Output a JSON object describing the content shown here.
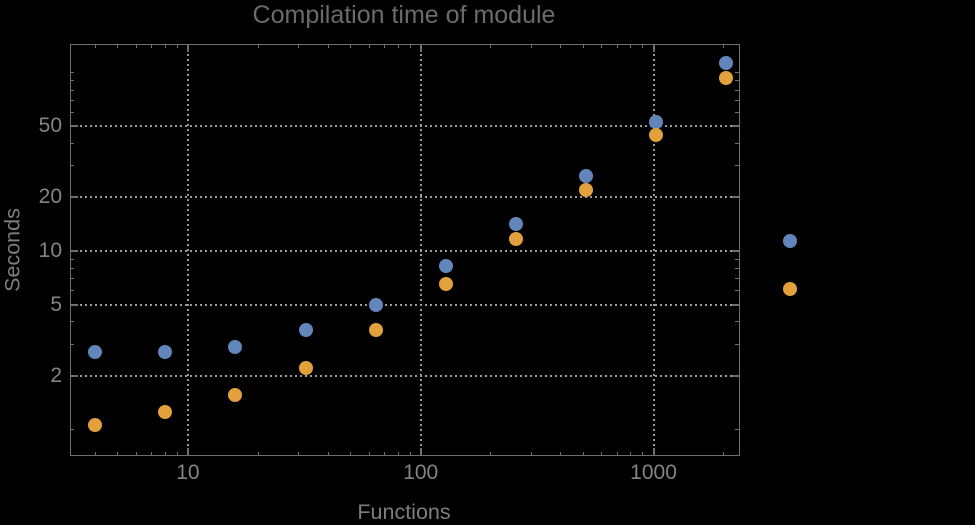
{
  "title": "Compilation time of module",
  "chart_data": {
    "type": "scatter",
    "title": "Compilation time of module",
    "xlabel": "Functions",
    "ylabel": "Seconds",
    "x_scale": "log",
    "y_scale": "log",
    "xlim": [
      3.1,
      2340
    ],
    "ylim": [
      0.707,
      146
    ],
    "grid": "dotted, at major ticks only",
    "x": [
      4,
      8,
      16,
      32,
      64,
      128,
      256,
      512,
      1024,
      2048
    ],
    "series": [
      {
        "name": "series-1-blue",
        "color": "#6286bc",
        "values": [
          2.7,
          2.7,
          2.9,
          3.6,
          5.0,
          8.2,
          14.1,
          26.5,
          53,
          114
        ]
      },
      {
        "name": "series-2-orange",
        "color": "#e2a13c",
        "values": [
          1.05,
          1.25,
          1.55,
          2.2,
          3.6,
          6.5,
          11.7,
          22,
          45,
          93
        ]
      }
    ],
    "x_major_ticks": {
      "values": [
        10,
        100,
        1000
      ],
      "labels": [
        "10",
        "100",
        "1000"
      ]
    },
    "x_minor_ticks": [
      4,
      5,
      6,
      7,
      8,
      9,
      20,
      30,
      40,
      50,
      60,
      70,
      80,
      90,
      200,
      300,
      400,
      500,
      600,
      700,
      800,
      900,
      2000
    ],
    "y_major_ticks": {
      "values": [
        2,
        5,
        10,
        20,
        50
      ],
      "labels": [
        "2",
        "5",
        "10",
        "20",
        "50"
      ]
    },
    "y_minor_ticks": [
      1,
      3,
      4,
      6,
      7,
      8,
      9,
      30,
      40,
      60,
      70,
      80,
      90,
      100
    ],
    "legend": {
      "position": "outside-right",
      "note": "marker dots only, no visible label text",
      "markers": [
        {
          "name": "series-1-blue",
          "color": "#6286bc"
        },
        {
          "name": "series-2-orange",
          "color": "#e2a13c"
        }
      ]
    }
  },
  "colors": {
    "background": "#000000",
    "frame": "#6f6f6f",
    "gridline": "#9a9a9a",
    "title_text": "#6b6b6b",
    "tick_label_text": "#848484",
    "axis_label_text": "#7e7e7e"
  }
}
